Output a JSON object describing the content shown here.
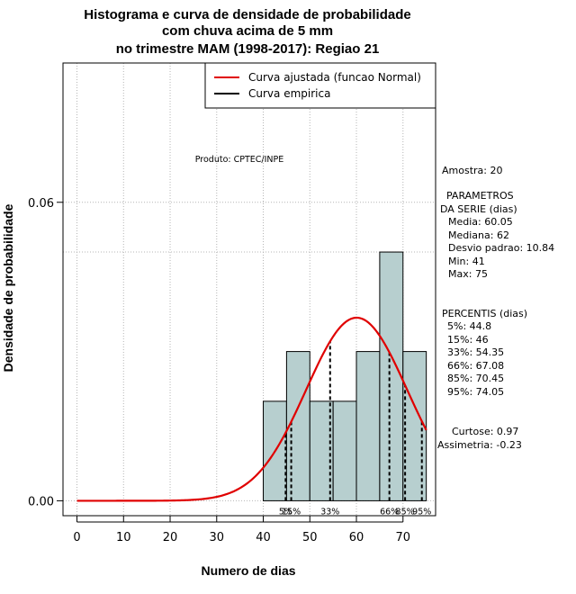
{
  "chart_data": {
    "type": "bar",
    "title_lines": [
      "Histograma e curva de densidade de probabilidade",
      "com chuva acima de 5 mm",
      "no trimestre MAM (1998-2017): Regiao 21"
    ],
    "xlabel": "Numero de dias",
    "ylabel": "Densidade de probabilidade",
    "xlim": [
      -3,
      77
    ],
    "ylim": [
      -0.003,
      0.088
    ],
    "x_ticks": [
      0,
      10,
      20,
      30,
      40,
      50,
      60,
      70
    ],
    "y_ticks": [
      0.0,
      0.06
    ],
    "y_tick_labels": [
      "0.00",
      "0.06"
    ],
    "grid": true,
    "grid_x": [
      0,
      10,
      20,
      30,
      40,
      50,
      60,
      70
    ],
    "grid_y": [
      0.0,
      0.06,
      0.05
    ],
    "bins": [
      {
        "x0": 40,
        "x1": 45,
        "density": 0.02
      },
      {
        "x0": 45,
        "x1": 50,
        "density": 0.03
      },
      {
        "x0": 50,
        "x1": 55,
        "density": 0.02
      },
      {
        "x0": 55,
        "x1": 60,
        "density": 0.02
      },
      {
        "x0": 60,
        "x1": 65,
        "density": 0.03
      },
      {
        "x0": 65,
        "x1": 70,
        "density": 0.05
      },
      {
        "x0": 70,
        "x1": 75,
        "density": 0.03
      }
    ],
    "bar_color": "#b7cfcf",
    "normal_curve": {
      "mean": 60.05,
      "sd": 10.84,
      "x_from": 0,
      "x_to": 75,
      "color": "#e00000"
    },
    "percentiles": [
      {
        "label": "5%",
        "value": 44.8
      },
      {
        "label": "15%",
        "value": 46
      },
      {
        "label": "33%",
        "value": 54.35
      },
      {
        "label": "66%",
        "value": 67.08
      },
      {
        "label": "85%",
        "value": 70.45
      },
      {
        "label": "95%",
        "value": 74.05
      }
    ],
    "legend": {
      "position": "top-right",
      "entries": [
        {
          "label": "Curva ajustada (funcao Normal)",
          "color": "#e00000"
        },
        {
          "label": "Curva empirica",
          "color": "#000000"
        }
      ]
    },
    "credit": "Produto: CPTEC/INPE",
    "stats_panel": {
      "amostra": "Amostra: 20",
      "params_header_1": "PARAMETROS",
      "params_header_2": "DA SERIE (dias)",
      "media": "Media: 60.05",
      "mediana": "Mediana: 62",
      "desvio": "Desvio padrao: 10.84",
      "min": "Min: 41",
      "max": "Max: 75",
      "percentis_header": "PERCENTIS (dias)",
      "p5": "5%: 44.8",
      "p15": "15%: 46",
      "p33": "33%: 54.35",
      "p66": "66%: 67.08",
      "p85": "85%: 70.45",
      "p95": "95%: 74.05",
      "curtose": "Curtose: 0.97",
      "assimetria": "Assimetria: -0.23"
    }
  }
}
